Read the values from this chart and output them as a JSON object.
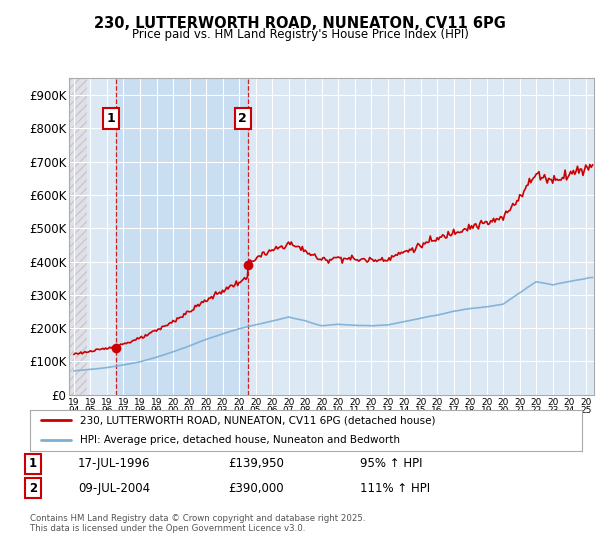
{
  "title": "230, LUTTERWORTH ROAD, NUNEATON, CV11 6PG",
  "subtitle": "Price paid vs. HM Land Registry's House Price Index (HPI)",
  "background_color": "#ffffff",
  "plot_bg_color": "#dce9f5",
  "hatch_bg_color": "#e8e8e8",
  "grid_color": "#ffffff",
  "red_color": "#cc0000",
  "blue_color": "#7bafd4",
  "sale1_date": 1996.54,
  "sale1_price": 139950,
  "sale2_date": 2004.52,
  "sale2_price": 390000,
  "xmin": 1993.7,
  "xmax": 2025.5,
  "ymin": 0,
  "ymax": 950000,
  "yticks": [
    0,
    100000,
    200000,
    300000,
    400000,
    500000,
    600000,
    700000,
    800000,
    900000
  ],
  "ytick_labels": [
    "£0",
    "£100K",
    "£200K",
    "£300K",
    "£400K",
    "£500K",
    "£600K",
    "£700K",
    "£800K",
    "£900K"
  ],
  "xticks": [
    1994,
    1995,
    1996,
    1997,
    1998,
    1999,
    2000,
    2001,
    2002,
    2003,
    2004,
    2005,
    2006,
    2007,
    2008,
    2009,
    2010,
    2011,
    2012,
    2013,
    2014,
    2015,
    2016,
    2017,
    2018,
    2019,
    2020,
    2021,
    2022,
    2023,
    2024,
    2025
  ],
  "legend_line1": "230, LUTTERWORTH ROAD, NUNEATON, CV11 6PG (detached house)",
  "legend_line2": "HPI: Average price, detached house, Nuneaton and Bedworth",
  "footer_text": "Contains HM Land Registry data © Crown copyright and database right 2025.\nThis data is licensed under the Open Government Licence v3.0.",
  "ann1_label": "1",
  "ann2_label": "2",
  "table1_date": "17-JUL-1996",
  "table1_price": "£139,950",
  "table1_hpi": "95% ↑ HPI",
  "table2_date": "09-JUL-2004",
  "table2_price": "£390,000",
  "table2_hpi": "111% ↑ HPI"
}
